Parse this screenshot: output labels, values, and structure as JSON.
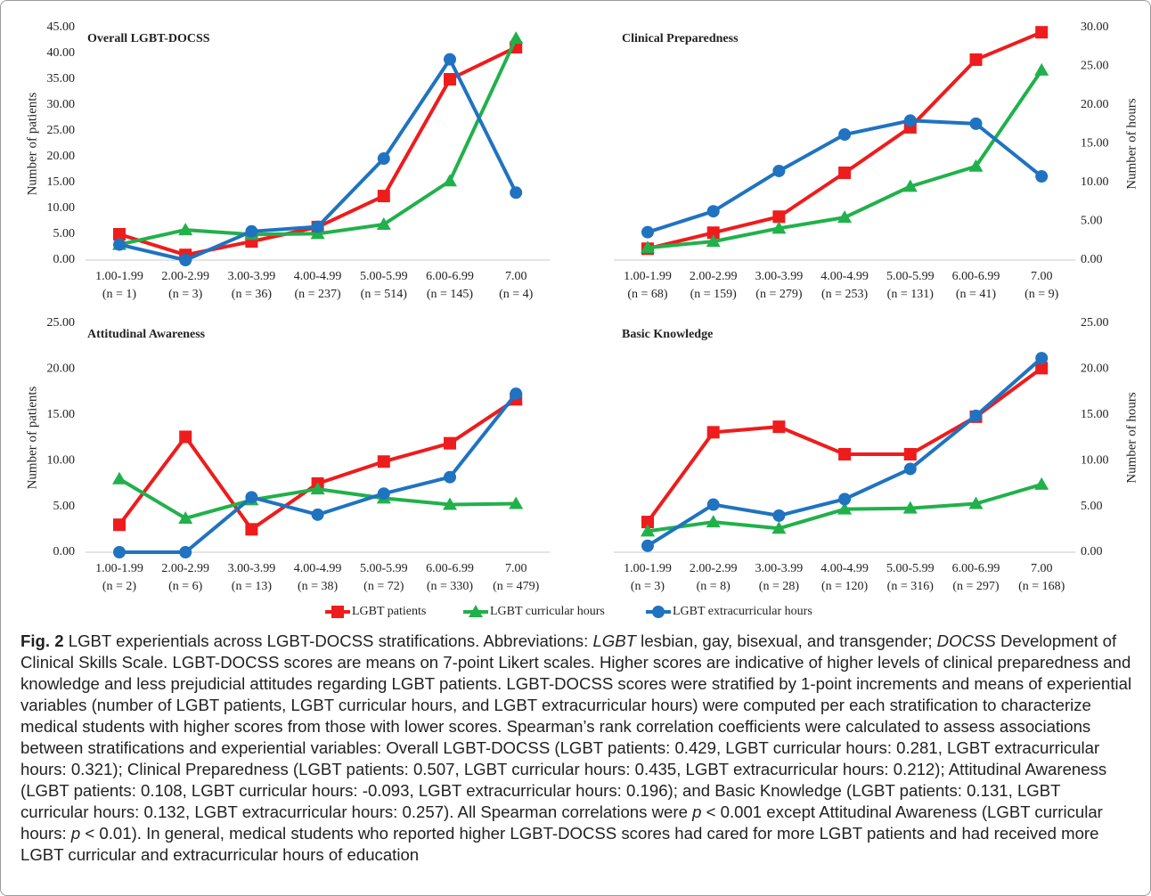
{
  "chart_data": {
    "type": "line",
    "legend": [
      {
        "name": "LGBT patients",
        "color": "#ee1c1c",
        "marker": "square"
      },
      {
        "name": "LGBT curricular hours",
        "color": "#21b14b",
        "marker": "triangle"
      },
      {
        "name": "LGBT extracurricular hours",
        "color": "#1f73c0",
        "marker": "circle"
      }
    ],
    "rows": [
      {
        "ylabel": "Number of patients",
        "y2label": "Number of hours",
        "ylim": [
          0,
          45
        ],
        "yticks": [
          {
            "value": 0,
            "label": "0.00"
          },
          {
            "value": 5,
            "label": "5.00"
          },
          {
            "value": 10,
            "label": "10.00"
          },
          {
            "value": 15,
            "label": "15.00"
          },
          {
            "value": 20,
            "label": "20.00"
          },
          {
            "value": 25,
            "label": "25.00"
          },
          {
            "value": 30,
            "label": "30.00"
          },
          {
            "value": 35,
            "label": "35.00"
          },
          {
            "value": 40,
            "label": "40.00"
          },
          {
            "value": 45,
            "label": "45.00"
          }
        ],
        "y2lim": [
          0,
          30
        ],
        "y2ticks": [
          {
            "value": 0,
            "label": "0.00"
          },
          {
            "value": 5,
            "label": "5.00"
          },
          {
            "value": 10,
            "label": "10.00"
          },
          {
            "value": 15,
            "label": "15.00"
          },
          {
            "value": 20,
            "label": "20.00"
          },
          {
            "value": 25,
            "label": "25.00"
          },
          {
            "value": 30,
            "label": "30.00"
          }
        ],
        "panels": [
          {
            "title": "Overall LGBT-DOCSS",
            "categories": [
              "1.00-1.99",
              "2.00-2.99",
              "3.00-3.99",
              "4.00-4.99",
              "5.00-5.99",
              "6.00-6.99",
              "7.00"
            ],
            "n_labels": [
              "(n = 1)",
              "(n = 3)",
              "(n = 36)",
              "(n = 237)",
              "(n = 514)",
              "(n = 145)",
              "(n = 4)"
            ],
            "series": [
              {
                "axis": "y",
                "values": [
                  5.0,
                  1.0,
                  3.6,
                  6.4,
                  12.4,
                  35.0,
                  41.2
                ]
              },
              {
                "axis": "y2",
                "values": [
                  2.0,
                  3.9,
                  3.3,
                  3.4,
                  4.6,
                  10.2,
                  28.6
                ]
              },
              {
                "axis": "y2",
                "values": [
                  2.0,
                  0.0,
                  3.7,
                  4.3,
                  13.1,
                  25.9,
                  8.7
                ]
              }
            ]
          },
          {
            "title": "Clinical Preparedness",
            "categories": [
              "1.00-1.99",
              "2.00-2.99",
              "3.00-3.99",
              "4.00-4.99",
              "5.00-5.99",
              "6.00-6.99",
              "7.00"
            ],
            "n_labels": [
              "(n = 68)",
              "(n = 159)",
              "(n = 279)",
              "(n = 253)",
              "(n = 131)",
              "(n = 41)",
              "(n = 9)"
            ],
            "series": [
              {
                "axis": "y",
                "values": [
                  2.2,
                  5.3,
                  8.4,
                  16.9,
                  25.7,
                  38.8,
                  44.1
                ]
              },
              {
                "axis": "y2",
                "values": [
                  1.6,
                  2.4,
                  4.1,
                  5.5,
                  9.5,
                  12.1,
                  24.5
                ]
              },
              {
                "axis": "y2",
                "values": [
                  3.6,
                  6.3,
                  11.5,
                  16.2,
                  18.0,
                  17.6,
                  10.8
                ]
              }
            ]
          }
        ]
      },
      {
        "ylabel": "Number of patients",
        "y2label": "Number of hours",
        "ylim": [
          0,
          25
        ],
        "yticks": [
          {
            "value": 0,
            "label": "0.00"
          },
          {
            "value": 5,
            "label": "5.00"
          },
          {
            "value": 10,
            "label": "10.00"
          },
          {
            "value": 15,
            "label": "15.00"
          },
          {
            "value": 20,
            "label": "20.00"
          },
          {
            "value": 25,
            "label": "25.00"
          }
        ],
        "y2lim": [
          0,
          25
        ],
        "y2ticks": [
          {
            "value": 0,
            "label": "0.00"
          },
          {
            "value": 5,
            "label": "5.00"
          },
          {
            "value": 10,
            "label": "10.00"
          },
          {
            "value": 15,
            "label": "15.00"
          },
          {
            "value": 20,
            "label": "20.00"
          },
          {
            "value": 25,
            "label": "25.00"
          }
        ],
        "panels": [
          {
            "title": "Attitudinal Awareness",
            "categories": [
              "1.00-1.99",
              "2.00-2.99",
              "3.00-3.99",
              "4.00-4.99",
              "5.00-5.99",
              "6.00-6.99",
              "7.00"
            ],
            "n_labels": [
              "(n = 2)",
              "(n = 6)",
              "(n = 13)",
              "(n = 38)",
              "(n = 72)",
              "(n = 330)",
              "(n = 479)"
            ],
            "series": [
              {
                "axis": "y",
                "values": [
                  3.0,
                  12.6,
                  2.5,
                  7.5,
                  9.9,
                  11.9,
                  16.7
                ]
              },
              {
                "axis": "y2",
                "values": [
                  8.0,
                  3.7,
                  5.7,
                  6.9,
                  5.9,
                  5.2,
                  5.3
                ]
              },
              {
                "axis": "y2",
                "values": [
                  0.0,
                  0.0,
                  6.0,
                  4.1,
                  6.4,
                  8.2,
                  17.3
                ]
              }
            ]
          },
          {
            "title": "Basic Knowledge",
            "categories": [
              "1.00-1.99",
              "2.00-2.99",
              "3.00-3.99",
              "4.00-4.99",
              "5.00-5.99",
              "6.00-6.99",
              "7.00"
            ],
            "n_labels": [
              "(n = 3)",
              "(n = 8)",
              "(n = 28)",
              "(n = 120)",
              "(n = 316)",
              "(n = 297)",
              "(n = 168)"
            ],
            "series": [
              {
                "axis": "y",
                "values": [
                  3.3,
                  13.1,
                  13.7,
                  10.7,
                  10.7,
                  14.8,
                  20.1
                ]
              },
              {
                "axis": "y2",
                "values": [
                  2.3,
                  3.3,
                  2.6,
                  4.7,
                  4.8,
                  5.3,
                  7.4
                ]
              },
              {
                "axis": "y2",
                "values": [
                  0.7,
                  5.2,
                  4.0,
                  5.8,
                  9.1,
                  14.9,
                  21.2
                ]
              }
            ]
          }
        ]
      }
    ]
  },
  "caption": [
    {
      "b": "Fig. 2"
    },
    " LGBT experientials across LGBT-DOCSS stratifications. Abbreviations: ",
    {
      "i": "LGBT"
    },
    " lesbian, gay, bisexual, and transgender; ",
    {
      "i": "DOCSS"
    },
    " Development of Clinical Skills Scale. LGBT-DOCSS scores are means on 7-point Likert scales. Higher scores are indicative of higher levels of clinical preparedness and knowledge and less prejudicial attitudes regarding LGBT patients. LGBT-DOCSS scores were stratified by 1-point increments and means of experiential variables (number of LGBT patients, LGBT curricular hours, and LGBT extracurricular hours) were computed per each stratification to characterize medical students with higher scores from those with lower scores. Spearman’s rank correlation coefficients were calculated to assess associations between stratifications and experiential variables: Overall LGBT-DOCSS (LGBT patients: 0.429, LGBT curricular hours: 0.281, LGBT extracurricular hours: 0.321); Clinical Preparedness (LGBT patients: 0.507, LGBT curricular hours: 0.435, LGBT extracurricular hours: 0.212); Attitudinal Awareness (LGBT patients: 0.108, LGBT curricular hours: -0.093, LGBT extracurricular hours: 0.196); and Basic Knowledge (LGBT patients: 0.131, LGBT curricular hours: 0.132, LGBT extracurricular hours: 0.257). All Spearman correlations were ",
    {
      "i": "p"
    },
    " < 0.001 except Attitudinal Awareness (LGBT curricular hours: ",
    {
      "i": "p"
    },
    " < 0.01). In general, medical students who reported higher LGBT-DOCSS scores had cared for more LGBT patients and had received more LGBT curricular and extracurricular hours of education"
  ]
}
